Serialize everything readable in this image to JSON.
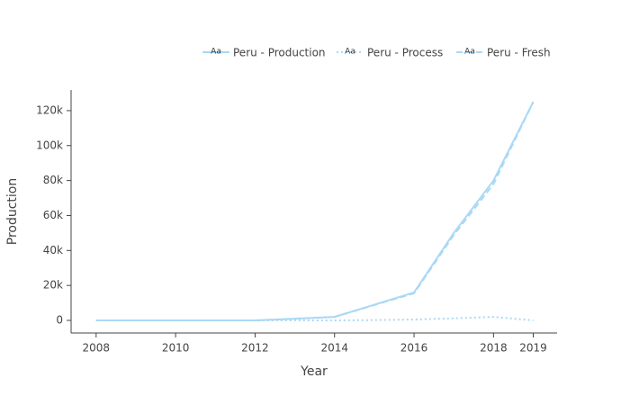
{
  "chart_data": {
    "type": "line",
    "x_label": "Year",
    "y_label": "Production",
    "legend_symbol_text": "Aa",
    "x": [
      2008,
      2009,
      2010,
      2011,
      2012,
      2013,
      2014,
      2015,
      2016,
      2017,
      2018,
      2019
    ],
    "series": [
      {
        "name": "Peru - Production",
        "color": "#aad8f5",
        "dash": "solid",
        "values": [
          0,
          0,
          0,
          0,
          0,
          1000,
          2000,
          9000,
          16000,
          50000,
          80000,
          125000
        ]
      },
      {
        "name": "Peru - Process",
        "color": "#aad8f5",
        "dash": "dot",
        "values": [
          0,
          0,
          0,
          0,
          0,
          0,
          0,
          200,
          500,
          1200,
          2000,
          0
        ]
      },
      {
        "name": "Peru - Fresh",
        "color": "#aad8f5",
        "dash": "dash",
        "values": [
          0,
          0,
          0,
          0,
          0,
          1000,
          2000,
          8800,
          15500,
          48800,
          78000,
          125000
        ]
      }
    ],
    "xlim": [
      2007.37,
      2019.6
    ],
    "xticks": [
      2008,
      2010,
      2012,
      2014,
      2016,
      2018,
      2019
    ],
    "ylim": [
      -7200,
      131800
    ],
    "yticks": [
      0,
      {
        "value": 20000,
        "label": "20k"
      },
      {
        "value": 40000,
        "label": "40k"
      },
      {
        "value": 60000,
        "label": "60k"
      },
      {
        "value": 80000,
        "label": "80k"
      },
      {
        "value": 100000,
        "label": "100k"
      },
      {
        "value": 120000,
        "label": "120k"
      }
    ],
    "grid": false
  }
}
